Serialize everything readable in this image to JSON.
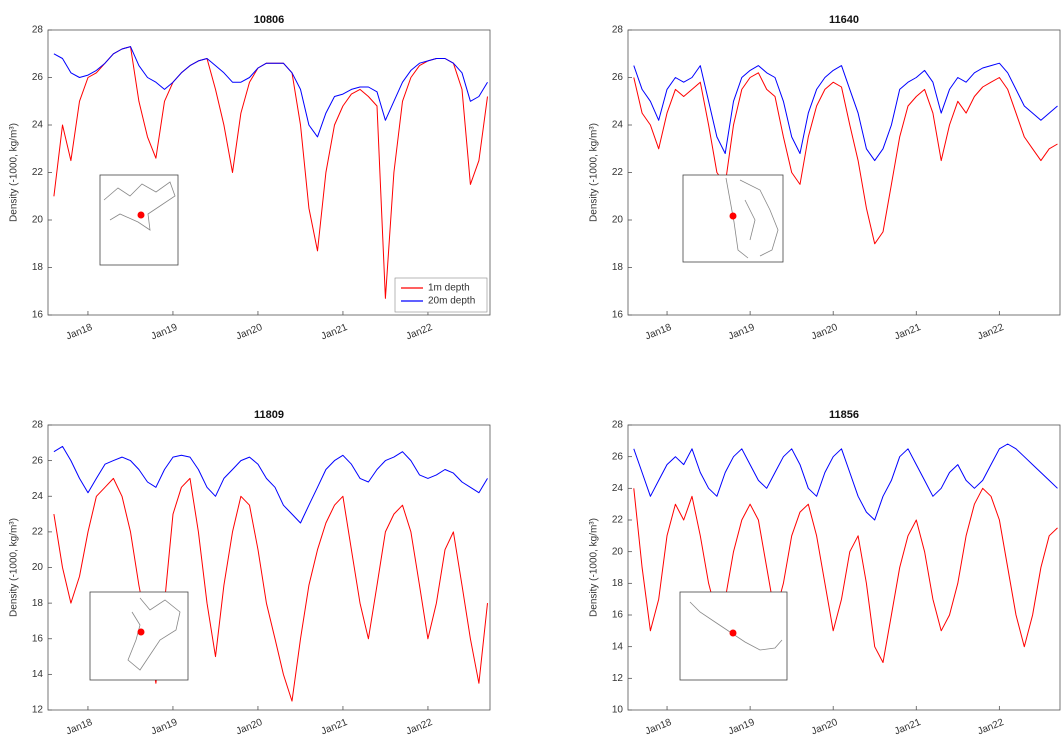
{
  "chart_data": [
    {
      "type": "line",
      "title": "10806",
      "ylabel": "Density (-1000, kg/m³)",
      "x": [
        2017.6,
        2017.7,
        2017.8,
        2017.9,
        2018,
        2018.1,
        2018.2,
        2018.3,
        2018.4,
        2018.5,
        2018.6,
        2018.7,
        2018.8,
        2018.9,
        2019,
        2019.1,
        2019.2,
        2019.3,
        2019.4,
        2019.5,
        2019.6,
        2019.7,
        2019.8,
        2019.9,
        2020,
        2020.1,
        2020.2,
        2020.3,
        2020.4,
        2020.5,
        2020.6,
        2020.7,
        2020.8,
        2020.9,
        2021,
        2021.1,
        2021.2,
        2021.3,
        2021.4,
        2021.5,
        2021.6,
        2021.7,
        2021.8,
        2021.9,
        2022,
        2022.1,
        2022.2,
        2022.3,
        2022.4,
        2022.5,
        2022.6,
        2022.7
      ],
      "xlim": [
        2017.53,
        2022.73
      ],
      "xticks": [
        {
          "value": 2018,
          "label": "Jan18"
        },
        {
          "value": 2019,
          "label": "Jan19"
        },
        {
          "value": 2020,
          "label": "Jan20"
        },
        {
          "value": 2021,
          "label": "Jan21"
        },
        {
          "value": 2022,
          "label": "Jan22"
        }
      ],
      "ylim": [
        16,
        28
      ],
      "yticks": [
        16,
        18,
        20,
        22,
        24,
        26,
        28
      ],
      "legend": "lower right",
      "series": [
        {
          "name": "1m depth",
          "color": "#ff0000",
          "values": [
            21,
            24,
            22.5,
            25,
            26,
            26.2,
            26.6,
            27,
            27.2,
            27.3,
            25,
            23.5,
            22.6,
            25,
            25.8,
            26.2,
            26.5,
            26.7,
            26.8,
            25.5,
            24,
            22,
            24.5,
            25.8,
            26.4,
            26.6,
            26.6,
            26.6,
            26.2,
            24,
            20.5,
            18.7,
            22,
            24,
            24.8,
            25.3,
            25.5,
            25.2,
            24.8,
            16.7,
            22,
            25,
            26,
            26.5,
            26.7,
            26.8,
            26.8,
            26.6,
            25.5,
            21.5,
            22.5,
            25.2
          ]
        },
        {
          "name": "20m depth",
          "color": "#0000ff",
          "values": [
            27,
            26.8,
            26.2,
            26,
            26.1,
            26.3,
            26.6,
            27,
            27.2,
            27.3,
            26.5,
            26,
            25.8,
            25.5,
            25.8,
            26.2,
            26.5,
            26.7,
            26.8,
            26.5,
            26.2,
            25.8,
            25.8,
            26,
            26.4,
            26.6,
            26.6,
            26.6,
            26.2,
            25.5,
            24,
            23.5,
            24.5,
            25.2,
            25.3,
            25.5,
            25.6,
            25.6,
            25.4,
            24.2,
            25,
            25.8,
            26.3,
            26.6,
            26.7,
            26.8,
            26.8,
            26.6,
            26.2,
            25,
            25.2,
            25.8
          ]
        }
      ]
    },
    {
      "type": "line",
      "title": "11640",
      "ylabel": "Density (-1000, kg/m³)",
      "x": [
        2017.6,
        2017.7,
        2017.8,
        2017.9,
        2018,
        2018.1,
        2018.2,
        2018.3,
        2018.4,
        2018.5,
        2018.6,
        2018.7,
        2018.8,
        2018.9,
        2019,
        2019.1,
        2019.2,
        2019.3,
        2019.4,
        2019.5,
        2019.6,
        2019.7,
        2019.8,
        2019.9,
        2020,
        2020.1,
        2020.2,
        2020.3,
        2020.4,
        2020.5,
        2020.6,
        2020.7,
        2020.8,
        2020.9,
        2021,
        2021.1,
        2021.2,
        2021.3,
        2021.4,
        2021.5,
        2021.6,
        2021.7,
        2021.8,
        2021.9,
        2022,
        2022.1,
        2022.2,
        2022.3,
        2022.4,
        2022.5,
        2022.6,
        2022.7
      ],
      "xlim": [
        2017.53,
        2022.73
      ],
      "xticks": [
        {
          "value": 2018,
          "label": "Jan18"
        },
        {
          "value": 2019,
          "label": "Jan19"
        },
        {
          "value": 2020,
          "label": "Jan20"
        },
        {
          "value": 2021,
          "label": "Jan21"
        },
        {
          "value": 2022,
          "label": "Jan22"
        }
      ],
      "ylim": [
        16,
        28
      ],
      "yticks": [
        16,
        18,
        20,
        22,
        24,
        26,
        28
      ],
      "series": [
        {
          "color": "#ff0000",
          "values": [
            26,
            24.5,
            24,
            23,
            24.5,
            25.5,
            25.2,
            25.5,
            25.8,
            24,
            22,
            21.5,
            24,
            25.5,
            26,
            26.2,
            25.5,
            25.2,
            23.5,
            22,
            21.5,
            23.5,
            24.8,
            25.5,
            25.8,
            25.6,
            24,
            22.5,
            20.5,
            19,
            19.5,
            21.5,
            23.5,
            24.8,
            25.2,
            25.5,
            24.5,
            22.5,
            24,
            25,
            24.5,
            25.2,
            25.6,
            25.8,
            26,
            25.5,
            24.5,
            23.5,
            23,
            22.5,
            23,
            23.2
          ]
        },
        {
          "color": "#0000ff",
          "values": [
            26.5,
            25.5,
            25,
            24.2,
            25.5,
            26,
            25.8,
            26,
            26.5,
            25,
            23.5,
            22.8,
            25,
            26,
            26.3,
            26.5,
            26.2,
            26,
            25,
            23.5,
            22.8,
            24.5,
            25.5,
            26,
            26.3,
            26.5,
            25.5,
            24.5,
            23,
            22.5,
            23,
            24,
            25.5,
            25.8,
            26,
            26.3,
            25.8,
            24.5,
            25.5,
            26,
            25.8,
            26.2,
            26.4,
            26.5,
            26.6,
            26.2,
            25.5,
            24.8,
            24.5,
            24.2,
            24.5,
            24.8
          ]
        }
      ]
    },
    {
      "type": "line",
      "title": "11809",
      "ylabel": "Density (-1000, kg/m³)",
      "x": [
        2017.6,
        2017.7,
        2017.8,
        2017.9,
        2018,
        2018.1,
        2018.2,
        2018.3,
        2018.4,
        2018.5,
        2018.6,
        2018.7,
        2018.8,
        2018.9,
        2019,
        2019.1,
        2019.2,
        2019.3,
        2019.4,
        2019.5,
        2019.6,
        2019.7,
        2019.8,
        2019.9,
        2020,
        2020.1,
        2020.2,
        2020.3,
        2020.4,
        2020.5,
        2020.6,
        2020.7,
        2020.8,
        2020.9,
        2021,
        2021.1,
        2021.2,
        2021.3,
        2021.4,
        2021.5,
        2021.6,
        2021.7,
        2021.8,
        2021.9,
        2022,
        2022.1,
        2022.2,
        2022.3,
        2022.4,
        2022.5,
        2022.6,
        2022.7
      ],
      "xlim": [
        2017.53,
        2022.73
      ],
      "xticks": [
        {
          "value": 2018,
          "label": "Jan18"
        },
        {
          "value": 2019,
          "label": "Jan19"
        },
        {
          "value": 2020,
          "label": "Jan20"
        },
        {
          "value": 2021,
          "label": "Jan21"
        },
        {
          "value": 2022,
          "label": "Jan22"
        }
      ],
      "ylim": [
        12,
        28
      ],
      "yticks": [
        12,
        14,
        16,
        18,
        20,
        22,
        24,
        26,
        28
      ],
      "series": [
        {
          "color": "#ff0000",
          "values": [
            23,
            20,
            18,
            19.5,
            22,
            24,
            24.5,
            25,
            24,
            22,
            19,
            16.5,
            13.5,
            18,
            23,
            24.5,
            25,
            22,
            18,
            15,
            19,
            22,
            24,
            23.5,
            21,
            18,
            16,
            14,
            12.5,
            16,
            19,
            21,
            22.5,
            23.5,
            24,
            21,
            18,
            16,
            19,
            22,
            23,
            23.5,
            22,
            19,
            16,
            18,
            21,
            22,
            19,
            16,
            13.5,
            18
          ]
        },
        {
          "color": "#0000ff",
          "values": [
            26.5,
            26.8,
            26,
            25,
            24.2,
            25,
            25.8,
            26,
            26.2,
            26,
            25.5,
            24.8,
            24.5,
            25.5,
            26.2,
            26.3,
            26.2,
            25.5,
            24.5,
            24,
            25,
            25.5,
            26,
            26.2,
            25.8,
            25,
            24.5,
            23.5,
            23,
            22.5,
            23.5,
            24.5,
            25.5,
            26,
            26.3,
            25.8,
            25,
            24.8,
            25.5,
            26,
            26.2,
            26.5,
            26,
            25.2,
            25,
            25.2,
            25.5,
            25.3,
            24.8,
            24.5,
            24.2,
            25
          ]
        }
      ]
    },
    {
      "type": "line",
      "title": "11856",
      "ylabel": "Density (-1000, kg/m³)",
      "x": [
        2017.6,
        2017.7,
        2017.8,
        2017.9,
        2018,
        2018.1,
        2018.2,
        2018.3,
        2018.4,
        2018.5,
        2018.6,
        2018.7,
        2018.8,
        2018.9,
        2019,
        2019.1,
        2019.2,
        2019.3,
        2019.4,
        2019.5,
        2019.6,
        2019.7,
        2019.8,
        2019.9,
        2020,
        2020.1,
        2020.2,
        2020.3,
        2020.4,
        2020.5,
        2020.6,
        2020.7,
        2020.8,
        2020.9,
        2021,
        2021.1,
        2021.2,
        2021.3,
        2021.4,
        2021.5,
        2021.6,
        2021.7,
        2021.8,
        2021.9,
        2022,
        2022.1,
        2022.2,
        2022.3,
        2022.4,
        2022.5,
        2022.6,
        2022.7
      ],
      "xlim": [
        2017.53,
        2022.73
      ],
      "xticks": [
        {
          "value": 2018,
          "label": "Jan18"
        },
        {
          "value": 2019,
          "label": "Jan19"
        },
        {
          "value": 2020,
          "label": "Jan20"
        },
        {
          "value": 2021,
          "label": "Jan21"
        },
        {
          "value": 2022,
          "label": "Jan22"
        }
      ],
      "ylim": [
        10,
        28
      ],
      "yticks": [
        10,
        12,
        14,
        16,
        18,
        20,
        22,
        24,
        26,
        28
      ],
      "series": [
        {
          "color": "#ff0000",
          "values": [
            24,
            19,
            15,
            17,
            21,
            23,
            22,
            23.5,
            21,
            18,
            16,
            17,
            20,
            22,
            23,
            22,
            19,
            16,
            18,
            21,
            22.5,
            23,
            21,
            18,
            15,
            17,
            20,
            21,
            18,
            14,
            13,
            16,
            19,
            21,
            22,
            20,
            17,
            15,
            16,
            18,
            21,
            23,
            24,
            23.5,
            22,
            19,
            16,
            14,
            16,
            19,
            21,
            21.5
          ]
        },
        {
          "color": "#0000ff",
          "values": [
            26.5,
            25,
            23.5,
            24.5,
            25.5,
            26,
            25.5,
            26.5,
            25,
            24,
            23.5,
            25,
            26,
            26.5,
            25.5,
            24.5,
            24,
            25,
            26,
            26.5,
            25.5,
            24,
            23.5,
            25,
            26,
            26.5,
            25,
            23.5,
            22.5,
            22,
            23.5,
            24.5,
            26,
            26.5,
            25.5,
            24.5,
            23.5,
            24,
            25,
            25.5,
            24.5,
            24,
            24.5,
            25.5,
            26.5,
            26.8,
            26.5,
            26,
            25.5,
            25,
            24.5,
            24
          ]
        }
      ]
    }
  ]
}
